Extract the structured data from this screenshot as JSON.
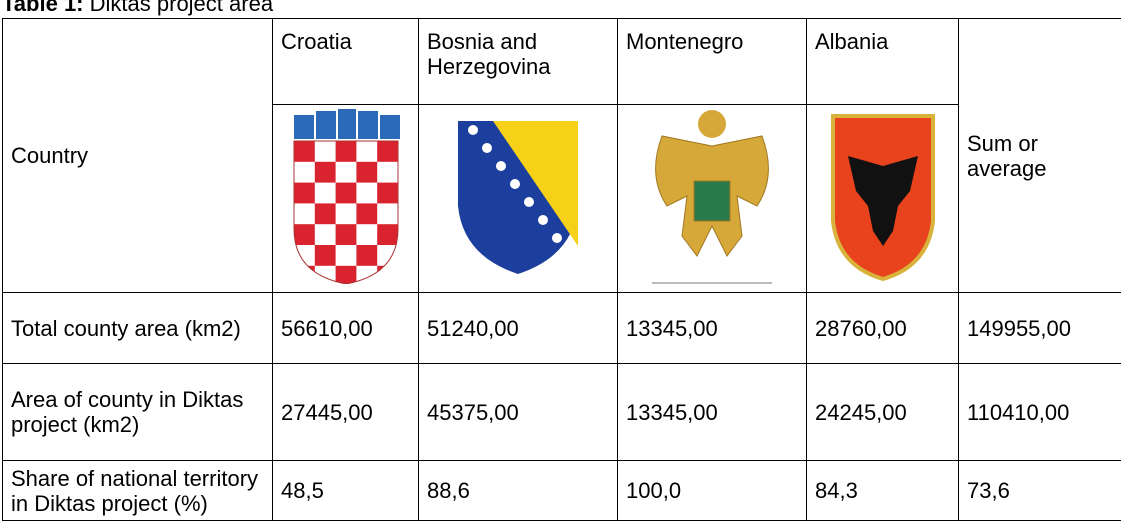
{
  "caption": {
    "label": "Table 1:",
    "title": "Diktas project area"
  },
  "table": {
    "header": [
      "Country",
      "Croatia",
      "Bosnia and Herzegovina",
      "Montenegro",
      "Albania",
      "Sum or average"
    ],
    "rows": [
      [
        "Total county area (km2)",
        "56610,00",
        "51240,00",
        "13345,00",
        "28760,00",
        "149955,00"
      ],
      [
        "Area of county in Diktas project (km2)",
        "27445,00",
        "45375,00",
        "13345,00",
        "24245,00",
        "110410,00"
      ],
      [
        "Share of national territory in Diktas project (%)",
        "48,5",
        "88,6",
        "100,0",
        "84,3",
        "73,6"
      ]
    ]
  }
}
